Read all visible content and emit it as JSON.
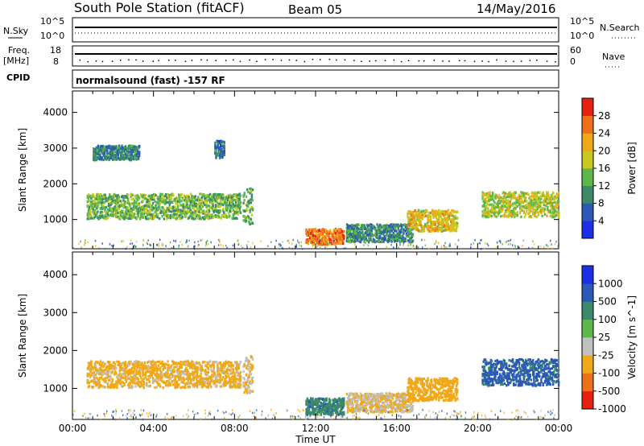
{
  "header": {
    "station": "South Pole Station (fitACF)",
    "beam": "Beam 05",
    "date": "14/May/2016"
  },
  "top_panels": {
    "nsky_label": "N.Sky",
    "nsearch_label": "N.Search",
    "nsky_ticks": [
      "10^5",
      "10^0"
    ],
    "nsearch_ticks": [
      "10^5",
      "10^0"
    ],
    "freq_label_1": "Freq.",
    "freq_label_2": "[MHz]",
    "freq_ticks": [
      "18",
      "8"
    ],
    "nave_label": "Nave",
    "nave_ticks": [
      "60",
      "0"
    ],
    "cpid_label": "CPID",
    "cpid_text": "normalsound (fast) -157 RF"
  },
  "chart_data": [
    {
      "type": "heatmap",
      "title": "",
      "xlabel": "",
      "ylabel": "Slant Range [km]",
      "xlim": [
        "00:00",
        "24:00"
      ],
      "ylim": [
        180,
        4600
      ],
      "yticks": [
        "1000",
        "2000",
        "3000",
        "4000"
      ],
      "colorbar": {
        "label": "Power [dB]",
        "ticks": [
          "4",
          "8",
          "12",
          "16",
          "20",
          "24",
          "28"
        ],
        "range": [
          0,
          32
        ],
        "colors": [
          "#1b2fe6",
          "#2a5ab5",
          "#3a8a6a",
          "#5cb84a",
          "#c8c820",
          "#f0a818",
          "#f07018",
          "#e82010"
        ]
      },
      "echo_regions": [
        {
          "t_start": 0.7,
          "t_end": 8.3,
          "r_center": 1400,
          "r_width": 350,
          "level": 14
        },
        {
          "t_start": 1.0,
          "t_end": 3.3,
          "r_center": 2900,
          "r_width": 200,
          "level": 9
        },
        {
          "t_start": 7.0,
          "t_end": 7.5,
          "r_center": 3000,
          "r_width": 250,
          "level": 8
        },
        {
          "t_start": 8.4,
          "t_end": 8.9,
          "r_center": 1400,
          "r_width": 500,
          "level": 13
        },
        {
          "t_start": 11.5,
          "t_end": 13.4,
          "r_center": 550,
          "r_width": 220,
          "level": 25
        },
        {
          "t_start": 13.5,
          "t_end": 16.8,
          "r_center": 650,
          "r_width": 250,
          "level": 10
        },
        {
          "t_start": 16.5,
          "t_end": 19.0,
          "r_center": 1000,
          "r_width": 300,
          "level": 20
        },
        {
          "t_start": 20.2,
          "t_end": 24.0,
          "r_center": 1450,
          "r_width": 350,
          "level": 17
        }
      ]
    },
    {
      "type": "heatmap",
      "title": "",
      "xlabel": "Time UT",
      "ylabel": "Slant Range [km]",
      "xlim": [
        "00:00",
        "24:00"
      ],
      "xticks": [
        "00:00",
        "04:00",
        "08:00",
        "12:00",
        "16:00",
        "20:00",
        "00:00"
      ],
      "ylim": [
        180,
        4600
      ],
      "yticks": [
        "1000",
        "2000",
        "3000",
        "4000"
      ],
      "colorbar": {
        "label": "Velocity [m s^-1]",
        "ticks": [
          "1000",
          "500",
          "100",
          "25",
          "-25",
          "-100",
          "-500",
          "-1000"
        ],
        "colors": [
          "#1b2fe6",
          "#2a5ab5",
          "#3a8a6a",
          "#5cb84a",
          "#c0c0c0",
          "#f0a818",
          "#f07018",
          "#e82010"
        ]
      },
      "echo_regions": [
        {
          "t_start": 0.7,
          "t_end": 8.3,
          "r_center": 1400,
          "r_width": 350,
          "level": -120
        },
        {
          "t_start": 8.4,
          "t_end": 8.9,
          "r_center": 1400,
          "r_width": 500,
          "level": -100
        },
        {
          "t_start": 11.5,
          "t_end": 13.4,
          "r_center": 550,
          "r_width": 220,
          "level": 80
        },
        {
          "t_start": 13.5,
          "t_end": 16.8,
          "r_center": 650,
          "r_width": 250,
          "level": -100
        },
        {
          "t_start": 16.5,
          "t_end": 19.0,
          "r_center": 1000,
          "r_width": 300,
          "level": -200
        },
        {
          "t_start": 20.2,
          "t_end": 24.0,
          "r_center": 1450,
          "r_width": 350,
          "level": 120
        }
      ]
    }
  ]
}
